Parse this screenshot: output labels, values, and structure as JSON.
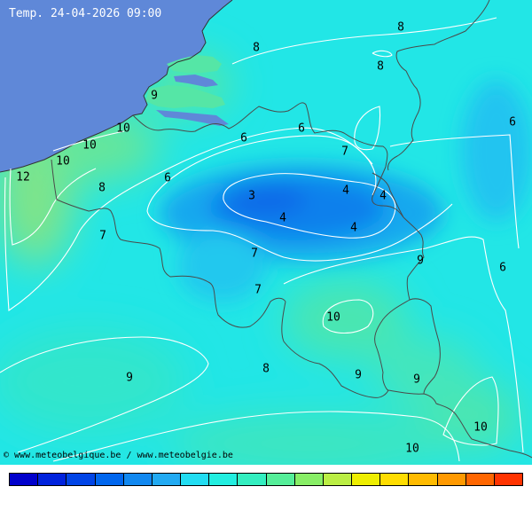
{
  "map": {
    "title": "Temp. 24-04-2026 09:00",
    "credit": "© www.meteobelgique.be / www.meteobelgie.be",
    "colors": {
      "sea": "#5f88d8",
      "base_field": "#22e6e6"
    },
    "isotherm_labels": [
      {
        "text": "8"
      },
      {
        "text": "8"
      },
      {
        "text": "8"
      },
      {
        "text": "9"
      },
      {
        "text": "10"
      },
      {
        "text": "10"
      },
      {
        "text": "10"
      },
      {
        "text": "12"
      },
      {
        "text": "8"
      },
      {
        "text": "6"
      },
      {
        "text": "6"
      },
      {
        "text": "6"
      },
      {
        "text": "7"
      },
      {
        "text": "3"
      },
      {
        "text": "4"
      },
      {
        "text": "4"
      },
      {
        "text": "4"
      },
      {
        "text": "4"
      },
      {
        "text": "7"
      },
      {
        "text": "7"
      },
      {
        "text": "7"
      },
      {
        "text": "9"
      },
      {
        "text": "6"
      },
      {
        "text": "10"
      },
      {
        "text": "9"
      },
      {
        "text": "8"
      },
      {
        "text": "9"
      },
      {
        "text": "9"
      },
      {
        "text": "10"
      },
      {
        "text": "10"
      },
      {
        "text": "6"
      }
    ],
    "scale_colors": [
      "#0000cc",
      "#0022dd",
      "#0044e6",
      "#0066ee",
      "#1188f0",
      "#22aaf2",
      "#22ddf2",
      "#22eee0",
      "#33eec0",
      "#55ee99",
      "#88ee66",
      "#bbee44",
      "#eeee00",
      "#ffdd00",
      "#ffbb00",
      "#ff9900",
      "#ff6600",
      "#ff3300"
    ]
  }
}
